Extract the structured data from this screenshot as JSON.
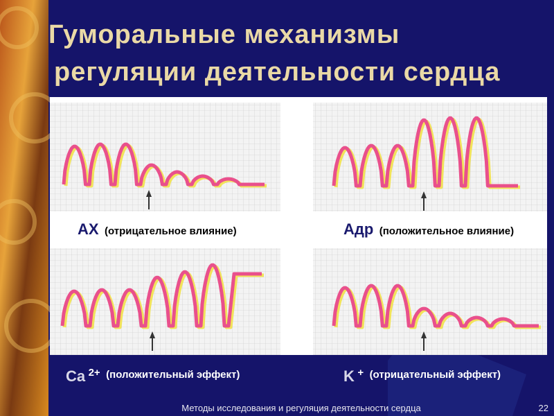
{
  "title": [
    "Гуморальные механизмы",
    "регуляции деятельности сердца"
  ],
  "panels": [
    {
      "name": "АХ",
      "note": "(отрицательное влияние)"
    },
    {
      "name": "Адр",
      "note": "(положительное влияние)"
    },
    {
      "name": "Ca",
      "superscript": "2+",
      "note": "(положительный эффект)"
    },
    {
      "name": "K",
      "superscript": "+",
      "note": "(отрицательный эффект)"
    }
  ],
  "footer": "Методы исследования и регуляция деятельности сердца",
  "page_number": "22"
}
